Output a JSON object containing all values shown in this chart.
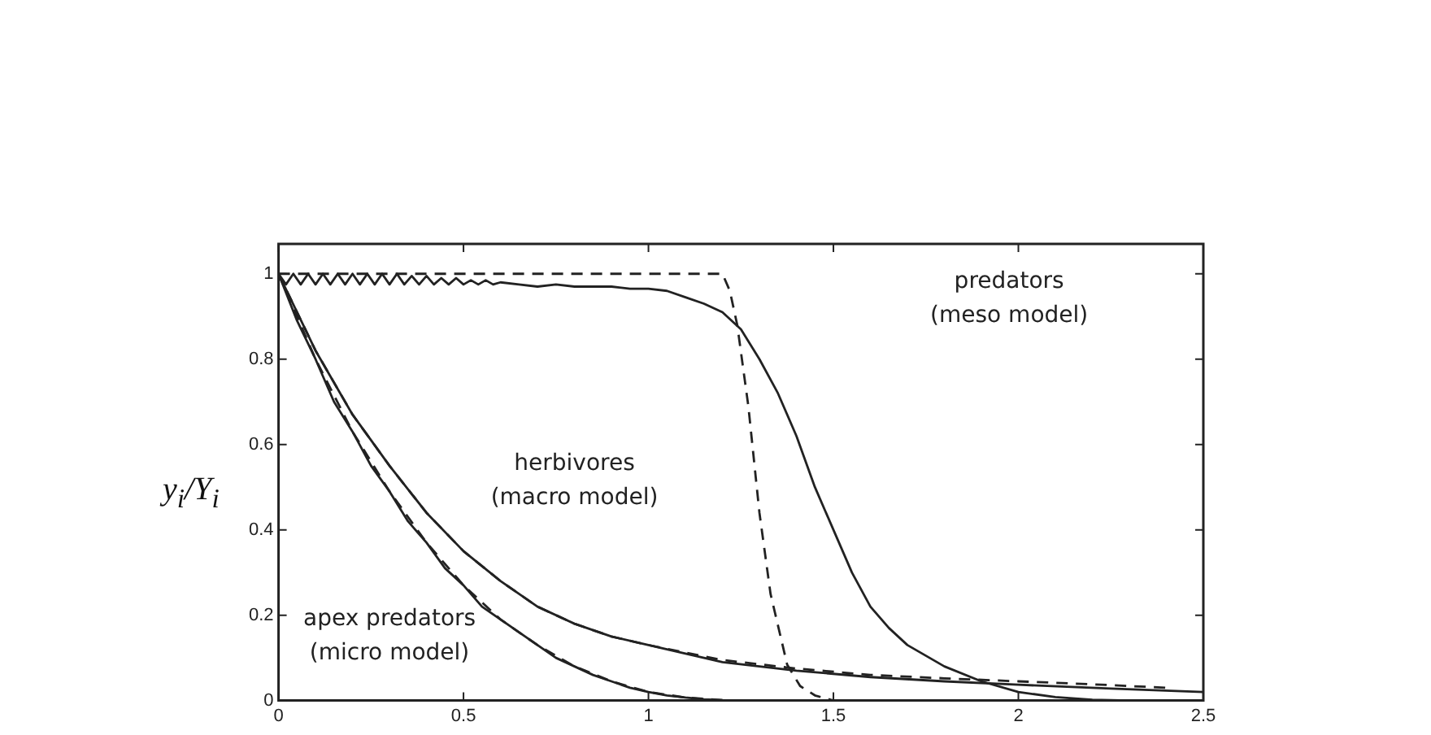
{
  "chart_data": {
    "type": "line",
    "ylabel": "y$_{i}$/Y$_{i}$",
    "xlim": [
      0,
      2.5
    ],
    "ylim": [
      0,
      1.07
    ],
    "xticks": [
      0,
      0.5,
      1,
      1.5,
      2,
      2.5
    ],
    "yticks": [
      0,
      0.2,
      0.4,
      0.6,
      0.8,
      1
    ],
    "grid": false,
    "legend": false,
    "marker": "none",
    "series": [
      {
        "color": "#222222",
        "line_style": "solid",
        "x": [
          0,
          0.02,
          0.04,
          0.06,
          0.08,
          0.1,
          0.12,
          0.14,
          0.16,
          0.18,
          0.2,
          0.22,
          0.24,
          0.26,
          0.28,
          0.3,
          0.32,
          0.34,
          0.36,
          0.38,
          0.4,
          0.42,
          0.44,
          0.46,
          0.48,
          0.5,
          0.52,
          0.54,
          0.56,
          0.58,
          0.6,
          0.65,
          0.7,
          0.75,
          0.8,
          0.85,
          0.9,
          0.95,
          1,
          1.05,
          1.1,
          1.15,
          1.2,
          1.25,
          1.3,
          1.35,
          1.4,
          1.45,
          1.5,
          1.55,
          1.6,
          1.65,
          1.7,
          1.8,
          1.9,
          2,
          2.1,
          2.2,
          2.3,
          2.5
        ],
        "values": [
          1,
          0.975,
          1,
          0.975,
          1,
          0.975,
          1,
          0.975,
          1,
          0.975,
          1,
          0.975,
          1,
          0.975,
          1,
          0.975,
          1,
          0.975,
          0.995,
          0.975,
          0.995,
          0.975,
          0.99,
          0.975,
          0.99,
          0.975,
          0.985,
          0.975,
          0.985,
          0.975,
          0.98,
          0.975,
          0.97,
          0.975,
          0.97,
          0.97,
          0.97,
          0.965,
          0.965,
          0.96,
          0.945,
          0.93,
          0.91,
          0.87,
          0.8,
          0.72,
          0.62,
          0.5,
          0.4,
          0.3,
          0.22,
          0.17,
          0.13,
          0.08,
          0.045,
          0.02,
          0.008,
          0.002,
          0,
          0
        ]
      },
      {
        "color": "#222222",
        "line_style": "dashed",
        "x": [
          0,
          1.2,
          1.22,
          1.24,
          1.27,
          1.3,
          1.33,
          1.375,
          1.41,
          1.45,
          1.5
        ],
        "values": [
          1,
          1,
          0.96,
          0.88,
          0.69,
          0.44,
          0.25,
          0.084,
          0.034,
          0.012,
          0
        ]
      },
      {
        "color": "#222222",
        "line_style": "solid",
        "x": [
          0,
          0.1,
          0.2,
          0.3,
          0.4,
          0.5,
          0.6,
          0.7,
          0.8,
          0.9,
          1,
          1.2,
          1.4,
          1.6,
          1.8,
          2,
          2.25,
          2.5
        ],
        "values": [
          1,
          0.82,
          0.67,
          0.55,
          0.44,
          0.35,
          0.28,
          0.22,
          0.18,
          0.15,
          0.13,
          0.09,
          0.07,
          0.055,
          0.045,
          0.037,
          0.028,
          0.02
        ]
      },
      {
        "color": "#222222",
        "line_style": "dashed",
        "x": [
          0,
          0.1,
          0.2,
          0.3,
          0.4,
          0.5,
          0.6,
          0.7,
          0.8,
          0.9,
          1,
          1.2,
          1.4,
          1.6,
          1.8,
          2,
          2.2,
          2.4
        ],
        "values": [
          1,
          0.82,
          0.67,
          0.55,
          0.44,
          0.35,
          0.28,
          0.22,
          0.18,
          0.15,
          0.13,
          0.095,
          0.075,
          0.06,
          0.052,
          0.045,
          0.038,
          0.03
        ]
      },
      {
        "color": "#222222",
        "line_style": "solid",
        "x": [
          0,
          0.05,
          0.1,
          0.15,
          0.2,
          0.25,
          0.3,
          0.35,
          0.4,
          0.45,
          0.5,
          0.55,
          0.6,
          0.65,
          0.7,
          0.75,
          0.8,
          0.85,
          0.9,
          0.95,
          1,
          1.05,
          1.1,
          1.15,
          1.2,
          1.25,
          1.3
        ],
        "values": [
          1,
          0.89,
          0.8,
          0.7,
          0.63,
          0.55,
          0.49,
          0.42,
          0.37,
          0.31,
          0.27,
          0.22,
          0.19,
          0.16,
          0.13,
          0.1,
          0.08,
          0.06,
          0.045,
          0.03,
          0.02,
          0.012,
          0.007,
          0.003,
          0.001,
          0,
          0
        ]
      },
      {
        "color": "#222222",
        "line_style": "dashed",
        "x": [
          0,
          0.1,
          0.2,
          0.3,
          0.4,
          0.5,
          0.6,
          0.7,
          0.8,
          0.9,
          1,
          1.1,
          1.2,
          1.25
        ],
        "values": [
          1,
          0.8,
          0.63,
          0.49,
          0.37,
          0.27,
          0.19,
          0.13,
          0.08,
          0.045,
          0.02,
          0.007,
          0.001,
          0
        ]
      }
    ],
    "annotations": [
      "predators\n(meso model)",
      "herbivores\n(macro model)",
      "apex predators\n(micro model)"
    ]
  }
}
